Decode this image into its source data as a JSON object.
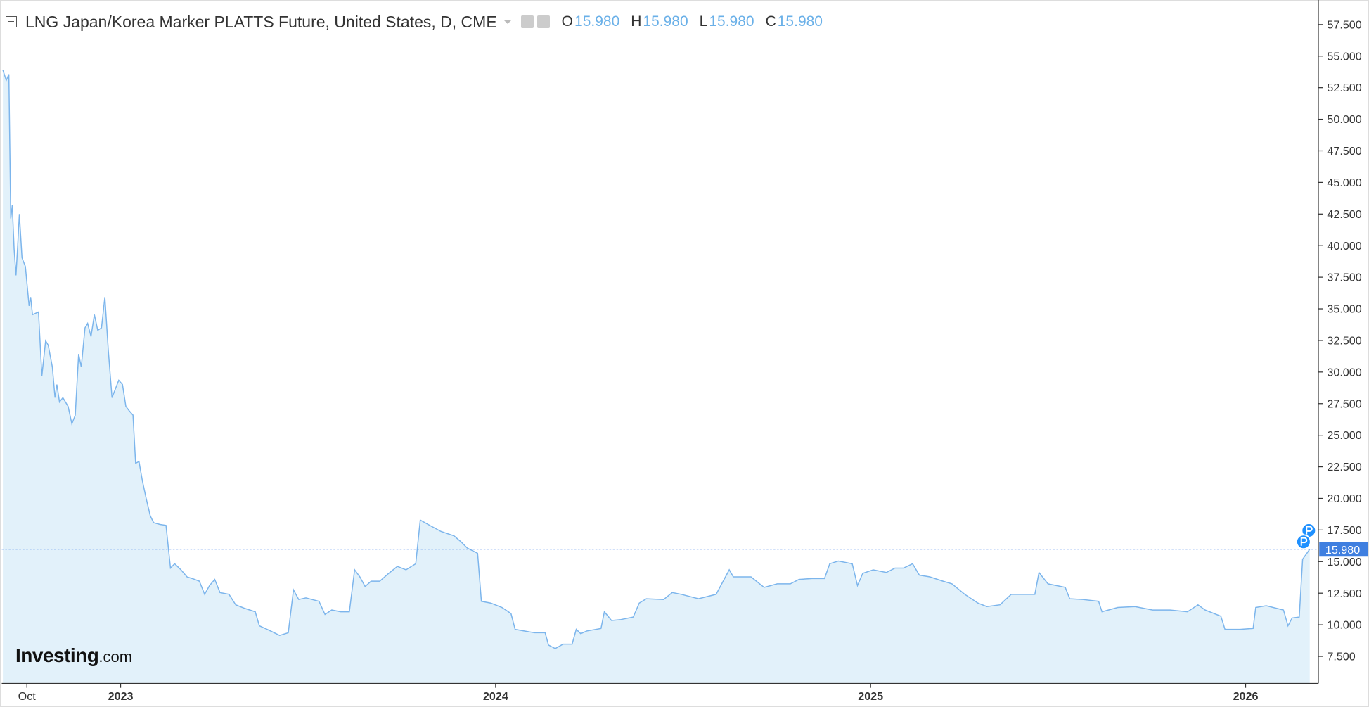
{
  "chart_data": {
    "type": "area",
    "title": "LNG Japan/Korea Marker PLATTS Future, United States, D, CME",
    "ohlc": [
      {
        "key": "O",
        "value": "15.980"
      },
      {
        "key": "H",
        "value": "15.980"
      },
      {
        "key": "L",
        "value": "15.980"
      },
      {
        "key": "C",
        "value": "15.980"
      }
    ],
    "logo": {
      "brand": "Investing",
      "suffix": ".com"
    },
    "last_price": 15.98,
    "last_price_label": "15.980",
    "color": "#7cb5ec",
    "fill_color": "#e2f1fa",
    "xlim": [
      2022.683,
      2026.194
    ],
    "xticks": [
      {
        "value": 2022.75,
        "label": "Oct"
      },
      {
        "value": 2023,
        "label": "2023"
      },
      {
        "value": 2024,
        "label": "2024"
      },
      {
        "value": 2025,
        "label": "2025"
      },
      {
        "value": 2026,
        "label": "2026"
      }
    ],
    "ylim": [
      5.36,
      59.44
    ],
    "yticks": [
      {
        "value": 7.5,
        "label": "7.500"
      },
      {
        "value": 10,
        "label": "10.000"
      },
      {
        "value": 12.5,
        "label": "12.500"
      },
      {
        "value": 15,
        "label": "15.000"
      },
      {
        "value": 17.5,
        "label": "17.500"
      },
      {
        "value": 20,
        "label": "20.000"
      },
      {
        "value": 22.5,
        "label": "22.500"
      },
      {
        "value": 25,
        "label": "25.000"
      },
      {
        "value": 27.5,
        "label": "27.500"
      },
      {
        "value": 30,
        "label": "30.000"
      },
      {
        "value": 32.5,
        "label": "32.500"
      },
      {
        "value": 35,
        "label": "35.000"
      },
      {
        "value": 37.5,
        "label": "37.500"
      },
      {
        "value": 40,
        "label": "40.000"
      },
      {
        "value": 42.5,
        "label": "42.500"
      },
      {
        "value": 45,
        "label": "45.000"
      },
      {
        "value": 47.5,
        "label": "47.500"
      },
      {
        "value": 50,
        "label": "50.000"
      },
      {
        "value": 52.5,
        "label": "52.500"
      },
      {
        "value": 55,
        "label": "55.000"
      },
      {
        "value": 57.5,
        "label": "57.500"
      }
    ],
    "x": [
      2022.686,
      2022.695,
      2022.702,
      2022.707,
      2022.711,
      2022.716,
      2022.721,
      2022.725,
      2022.73,
      2022.737,
      2022.746,
      2022.756,
      2022.76,
      2022.765,
      2022.781,
      2022.79,
      2022.8,
      2022.807,
      2022.818,
      2022.825,
      2022.83,
      2022.837,
      2022.846,
      2022.86,
      2022.87,
      2022.879,
      2022.888,
      2022.895,
      2022.905,
      2022.912,
      2022.921,
      2022.93,
      2022.939,
      2022.949,
      2022.958,
      2022.967,
      2022.977,
      2022.986,
      2022.995,
      2023.005,
      2023.014,
      2023.023,
      2023.033,
      2023.04,
      2023.049,
      2023.058,
      2023.068,
      2023.079,
      2023.088,
      2023.105,
      2023.121,
      2023.133,
      2023.144,
      2023.161,
      2023.177,
      2023.191,
      2023.21,
      2023.224,
      2023.237,
      2023.251,
      2023.265,
      2023.289,
      2023.307,
      2023.331,
      2023.359,
      2023.37,
      2023.4,
      2023.424,
      2023.447,
      2023.461,
      2023.475,
      2023.494,
      2023.529,
      2023.545,
      2023.563,
      2023.587,
      2023.61,
      2023.624,
      2023.638,
      2023.652,
      2023.668,
      2023.691,
      2023.715,
      2023.738,
      2023.761,
      2023.787,
      2023.799,
      2023.82,
      2023.854,
      2023.889,
      2023.908,
      2023.924,
      2023.952,
      2023.962,
      2023.987,
      2024.017,
      2024.041,
      2024.052,
      2024.076,
      2024.104,
      2024.132,
      2024.141,
      2024.159,
      2024.18,
      2024.204,
      2024.215,
      2024.227,
      2024.243,
      2024.281,
      2024.29,
      2024.309,
      2024.332,
      2024.367,
      2024.383,
      2024.402,
      2024.448,
      2024.471,
      2024.495,
      2024.541,
      2024.588,
      2024.623,
      2024.634,
      2024.681,
      2024.716,
      2024.751,
      2024.786,
      2024.809,
      2024.844,
      2024.877,
      2024.891,
      2024.914,
      2024.951,
      2024.965,
      2024.979,
      2025.007,
      2025.042,
      2025.065,
      2025.088,
      2025.112,
      2025.13,
      2025.158,
      2025.193,
      2025.217,
      2025.251,
      2025.286,
      2025.31,
      2025.345,
      2025.375,
      2025.403,
      2025.438,
      2025.449,
      2025.473,
      2025.519,
      2025.531,
      2025.566,
      2025.608,
      2025.617,
      2025.659,
      2025.705,
      2025.752,
      2025.799,
      2025.845,
      2025.873,
      2025.892,
      2025.934,
      2025.945,
      2025.985,
      2026.02,
      2026.027,
      2026.055,
      2026.101,
      2026.113,
      2026.124,
      2026.143,
      2026.152,
      2026.171
    ],
    "values": [
      53.9,
      53.08,
      53.56,
      42.15,
      43.19,
      39.73,
      37.65,
      39.73,
      42.5,
      39.04,
      38.35,
      35.23,
      35.93,
      34.54,
      34.75,
      29.7,
      32.47,
      32.12,
      30.39,
      27.97,
      29.01,
      27.63,
      27.97,
      27.28,
      25.9,
      26.59,
      31.43,
      30.39,
      33.5,
      33.85,
      32.81,
      34.54,
      33.3,
      33.5,
      35.93,
      31.78,
      27.97,
      28.66,
      29.35,
      29.01,
      27.28,
      26.93,
      26.59,
      22.78,
      22.92,
      21.4,
      20.02,
      18.63,
      18.08,
      17.94,
      17.87,
      14.49,
      14.83,
      14.35,
      13.79,
      13.66,
      13.45,
      12.41,
      13.1,
      13.59,
      12.55,
      12.41,
      11.58,
      11.3,
      11.03,
      9.92,
      9.51,
      9.16,
      9.37,
      12.76,
      12.0,
      12.13,
      11.86,
      10.82,
      11.17,
      11.03,
      11.03,
      14.35,
      13.79,
      13.03,
      13.45,
      13.45,
      14.07,
      14.62,
      14.35,
      14.83,
      18.29,
      17.94,
      17.39,
      17.04,
      16.56,
      16.08,
      15.66,
      11.86,
      11.72,
      11.37,
      10.89,
      9.64,
      9.51,
      9.37,
      9.37,
      8.4,
      8.12,
      8.47,
      8.47,
      9.64,
      9.3,
      9.51,
      9.71,
      11.03,
      10.34,
      10.4,
      10.61,
      11.72,
      12.06,
      12.0,
      12.55,
      12.41,
      12.06,
      12.41,
      14.35,
      13.79,
      13.79,
      12.96,
      13.24,
      13.24,
      13.59,
      13.66,
      13.66,
      14.83,
      15.04,
      14.83,
      13.1,
      14.07,
      14.35,
      14.14,
      14.49,
      14.49,
      14.83,
      13.93,
      13.79,
      13.45,
      13.24,
      12.41,
      11.72,
      11.44,
      11.58,
      12.41,
      12.41,
      12.41,
      14.14,
      13.24,
      12.96,
      12.06,
      12.0,
      11.86,
      11.03,
      11.37,
      11.44,
      11.17,
      11.17,
      11.03,
      11.58,
      11.17,
      10.68,
      9.64,
      9.64,
      9.71,
      11.37,
      11.51,
      11.17,
      9.92,
      10.54,
      10.61,
      15.18,
      15.98
    ]
  }
}
